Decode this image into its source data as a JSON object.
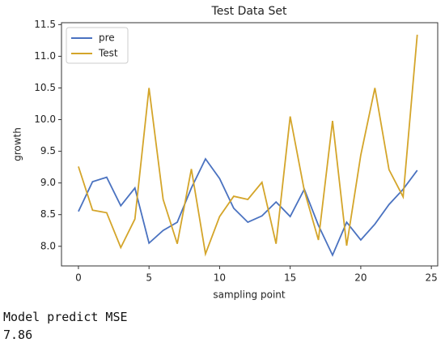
{
  "chart_data": {
    "type": "line",
    "title": "Test Data Set",
    "x_label": "sampling point",
    "y_label": "growth",
    "x": [
      0,
      1,
      2,
      3,
      4,
      5,
      6,
      7,
      8,
      9,
      10,
      11,
      12,
      13,
      14,
      15,
      16,
      17,
      18,
      19,
      20,
      21,
      22,
      23,
      24
    ],
    "series": [
      {
        "name": "pre",
        "color": "#4a72c0",
        "values": [
          8.55,
          9.02,
          9.09,
          8.64,
          8.92,
          8.05,
          8.25,
          8.38,
          8.92,
          9.38,
          9.07,
          8.6,
          8.38,
          8.48,
          8.7,
          8.47,
          8.9,
          8.33,
          7.86,
          8.38,
          8.1,
          8.35,
          8.66,
          8.9,
          9.2
        ]
      },
      {
        "name": "Test",
        "color": "#d4a52a",
        "values": [
          9.26,
          8.57,
          8.53,
          7.98,
          8.43,
          10.5,
          8.74,
          8.04,
          9.22,
          7.88,
          8.47,
          8.79,
          8.74,
          9.01,
          8.04,
          10.05,
          8.88,
          8.1,
          9.98,
          8.01,
          9.44,
          10.5,
          9.21,
          8.78,
          11.34
        ]
      }
    ],
    "xlim": [
      -1.2,
      25.45
    ],
    "xticks": [
      0,
      5,
      10,
      15,
      20,
      25
    ],
    "ylim": [
      7.69,
      11.53
    ],
    "yticks": [
      {
        "value": 8,
        "label": "8.0"
      },
      {
        "value": 8.5,
        "label": "8.5"
      },
      {
        "value": 9,
        "label": "9.0"
      },
      {
        "value": 9.5,
        "label": "9.5"
      },
      {
        "value": 10,
        "label": "10.0"
      },
      {
        "value": 10.5,
        "label": "10.5"
      },
      {
        "value": 11,
        "label": "11.0"
      },
      11.5
    ],
    "legend": "upper left"
  },
  "output": {
    "label": "Model predict MSE",
    "value": 7.86
  }
}
